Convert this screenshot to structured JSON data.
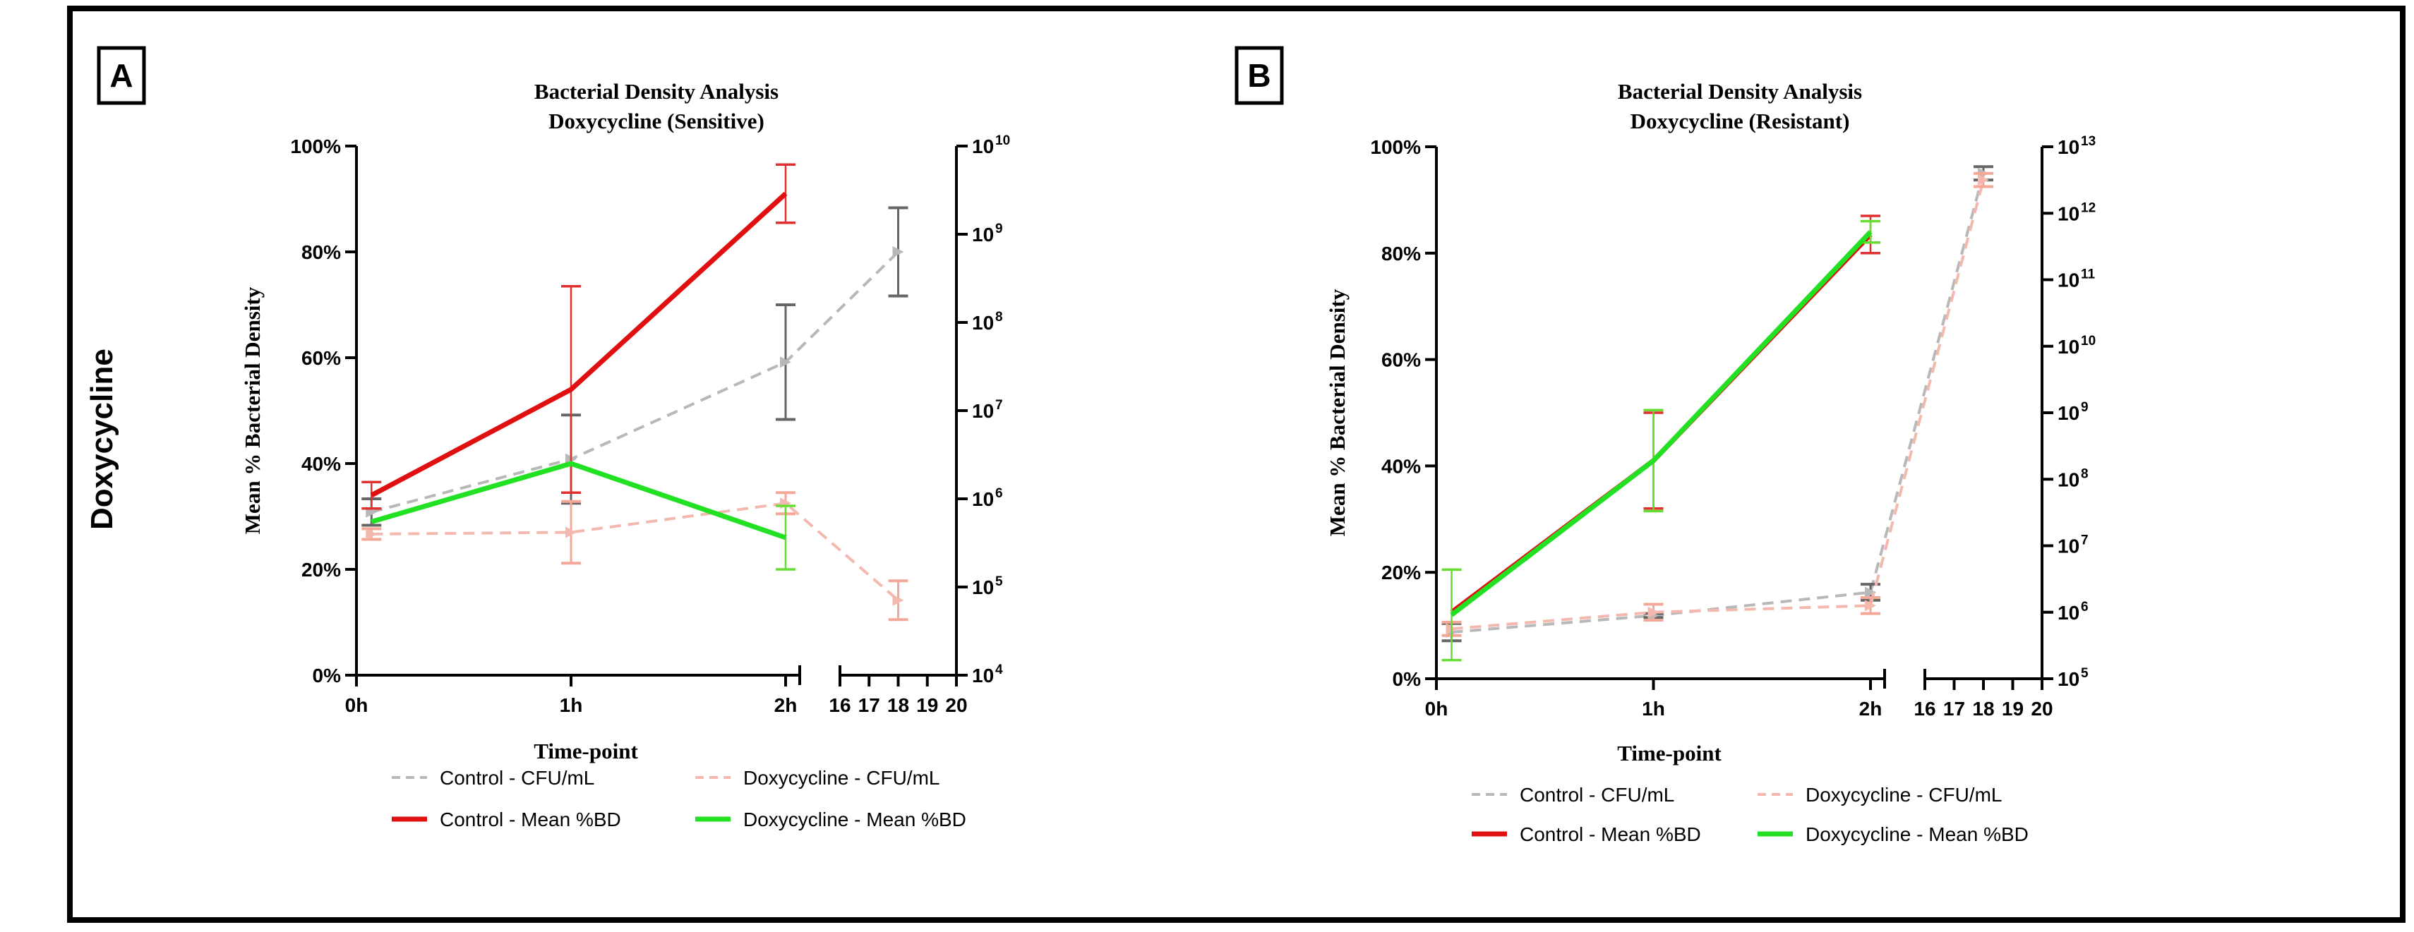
{
  "side_label": "Doxycycline",
  "legend_labels": {
    "control_cfu": "Control - CFU/mL",
    "doxy_cfu": "Doxycycline - CFU/mL",
    "control_bd": "Control - Mean %BD",
    "doxy_bd": "Doxycycline - Mean %BD"
  },
  "colors": {
    "control_cfu": "#b8b8b8",
    "doxy_cfu": "#f4b9ae",
    "control_bd": "#e01010",
    "doxy_bd": "#22e022",
    "control_cfu_err": "#666666",
    "doxy_cfu_err": "#f4a898",
    "control_bd_err": "#e03030",
    "doxy_bd_err": "#66dd33"
  },
  "chart_data": [
    {
      "panel": "A",
      "type": "line",
      "title": "Bacterial Density Analysis",
      "subtitle": "Doxycycline (Sensitive)",
      "xlabel": "Time-point",
      "ylabel": "Mean % Bacterial Density",
      "x_ticks_main": [
        "0h",
        "1h",
        "2h"
      ],
      "x_ticks_late": [
        "16",
        "17",
        "18",
        "19",
        "20"
      ],
      "y_left_ticks": [
        "0%",
        "20%",
        "40%",
        "60%",
        "80%",
        "100%"
      ],
      "y_left_lim": [
        0,
        100
      ],
      "y_right_ticks": [
        {
          "base": "10",
          "exp": "4"
        },
        {
          "base": "10",
          "exp": "5"
        },
        {
          "base": "10",
          "exp": "6"
        },
        {
          "base": "10",
          "exp": "7"
        },
        {
          "base": "10",
          "exp": "8"
        },
        {
          "base": "10",
          "exp": "9"
        },
        {
          "base": "10",
          "exp": "10"
        }
      ],
      "y_right_log_lim": [
        4,
        10
      ],
      "series_bd": [
        {
          "name": "Control - Mean %BD",
          "key": "control_bd",
          "x": [
            0.07,
            1,
            2
          ],
          "y": [
            34,
            54,
            91
          ],
          "err": [
            2.5,
            19.5,
            5.5
          ]
        },
        {
          "name": "Doxycycline - Mean %BD",
          "key": "doxy_bd",
          "x": [
            0.07,
            1,
            2
          ],
          "y": [
            29,
            40,
            26
          ],
          "err": [
            0,
            0,
            6
          ]
        }
      ],
      "series_cfu": [
        {
          "name": "Control - CFU/mL",
          "key": "control_cfu",
          "x": [
            0.07,
            1,
            2,
            18
          ],
          "log_y": [
            5.85,
            6.45,
            7.55,
            8.8
          ],
          "log_err": [
            0.15,
            0.5,
            0.65,
            0.5
          ]
        },
        {
          "name": "Doxycycline - CFU/mL",
          "key": "doxy_cfu",
          "x": [
            0.07,
            1,
            2,
            18
          ],
          "log_y": [
            5.6,
            5.62,
            5.95,
            4.85
          ],
          "log_err": [
            0.06,
            0.35,
            0.12,
            0.22
          ]
        }
      ]
    },
    {
      "panel": "B",
      "type": "line",
      "title": "Bacterial Density Analysis",
      "subtitle": "Doxycycline (Resistant)",
      "xlabel": "Time-point",
      "ylabel": "Mean % Bacterial Density",
      "x_ticks_main": [
        "0h",
        "1h",
        "2h"
      ],
      "x_ticks_late": [
        "16",
        "17",
        "18",
        "19",
        "20"
      ],
      "y_left_ticks": [
        "0%",
        "20%",
        "40%",
        "60%",
        "80%",
        "100%"
      ],
      "y_left_lim": [
        0,
        100
      ],
      "y_right_ticks": [
        {
          "base": "10",
          "exp": "5"
        },
        {
          "base": "10",
          "exp": "6"
        },
        {
          "base": "10",
          "exp": "7"
        },
        {
          "base": "10",
          "exp": "8"
        },
        {
          "base": "10",
          "exp": "9"
        },
        {
          "base": "10",
          "exp": "10"
        },
        {
          "base": "10",
          "exp": "11"
        },
        {
          "base": "10",
          "exp": "12"
        },
        {
          "base": "10",
          "exp": "13"
        }
      ],
      "y_right_log_lim": [
        5,
        13
      ],
      "series_bd": [
        {
          "name": "Control - Mean %BD",
          "key": "control_bd",
          "x": [
            0.07,
            1,
            2
          ],
          "y": [
            12.5,
            41,
            83.5
          ],
          "err": [
            0,
            9,
            3.5
          ]
        },
        {
          "name": "Doxycycline - Mean %BD",
          "key": "doxy_bd",
          "x": [
            0.07,
            1,
            2
          ],
          "y": [
            12,
            41,
            84
          ],
          "err": [
            8.5,
            9.5,
            2
          ]
        }
      ],
      "series_cfu": [
        {
          "name": "Control - CFU/mL",
          "key": "control_cfu",
          "x": [
            0.07,
            1,
            2,
            18
          ],
          "log_y": [
            5.7,
            5.95,
            6.3,
            12.6
          ],
          "log_err": [
            0.13,
            0.03,
            0.12,
            0.1
          ]
        },
        {
          "name": "Doxycycline - CFU/mL",
          "key": "doxy_cfu",
          "x": [
            0.07,
            1,
            2,
            18
          ],
          "log_y": [
            5.75,
            6.0,
            6.1,
            12.5
          ],
          "log_err": [
            0.1,
            0.12,
            0.12,
            0.1
          ]
        }
      ]
    }
  ]
}
